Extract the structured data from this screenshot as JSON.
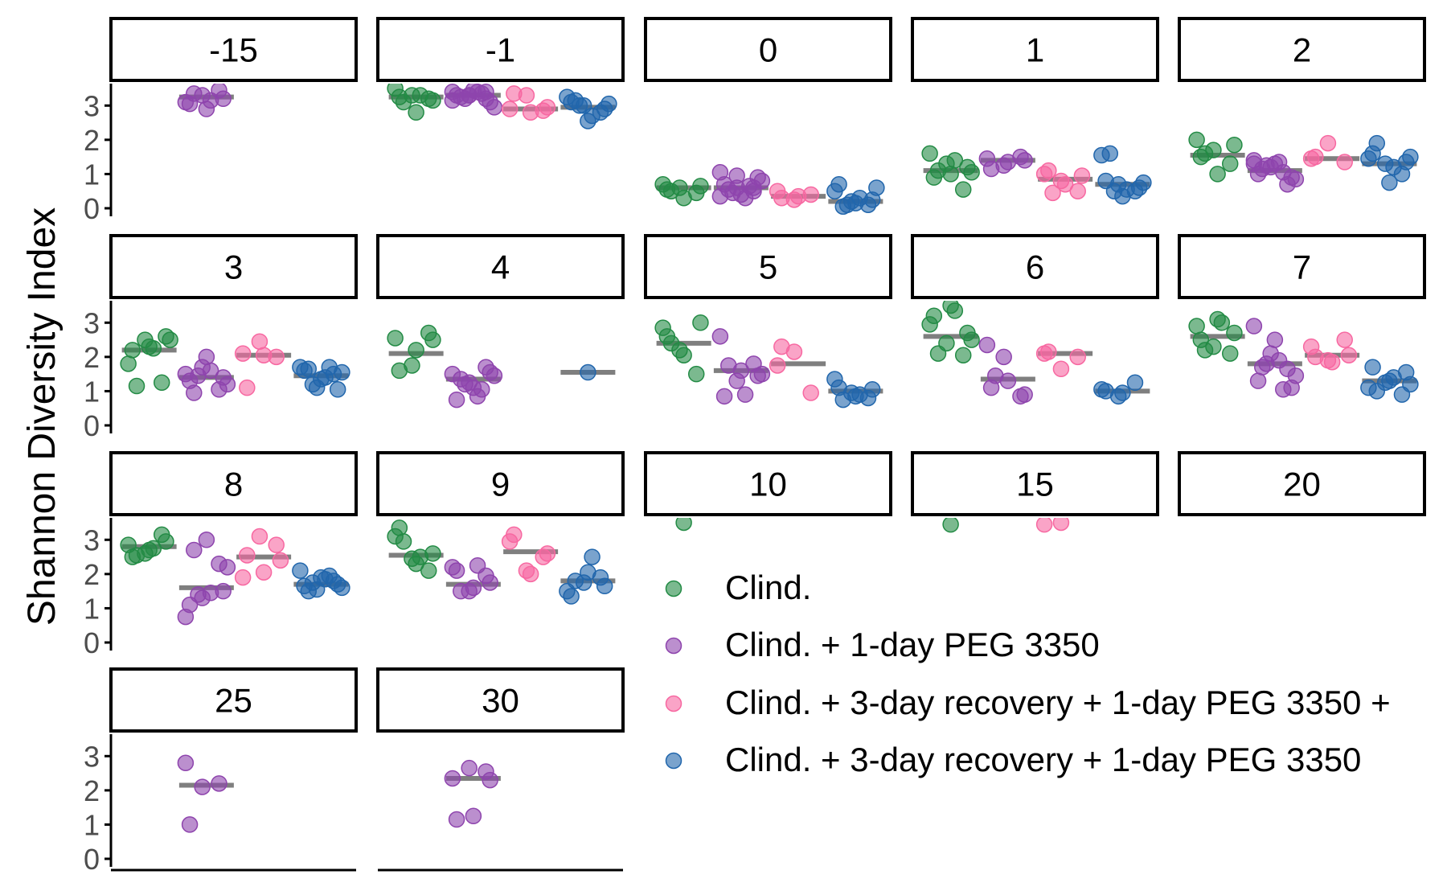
{
  "chart_data": {
    "type": "scatter",
    "ylabel": "Shannon Diversity Index",
    "xlabel": "",
    "ylim": [
      0,
      3.5
    ],
    "yticks": [
      "0",
      "1",
      "2",
      "3"
    ],
    "grid": false,
    "legend_position": "right",
    "series": [
      {
        "name": "Clind.",
        "color": "#238b45"
      },
      {
        "name": "Clind. + 1-day PEG 3350",
        "color": "#8e44ad"
      },
      {
        "name": "Clind. + 3-day recovery + 1-day PEG 3350 +",
        "color": "#f768a1"
      },
      {
        "name": "Clind. + 3-day recovery + 1-day PEG 3350",
        "color": "#2166ac"
      }
    ],
    "panels": [
      {
        "label": "-15",
        "groups": [
          null,
          {
            "median": 3.25,
            "points": [
              3.1,
              3.3,
              3.45,
              3.05,
              2.9,
              3.2,
              3.35,
              3.15
            ]
          },
          null,
          null
        ]
      },
      {
        "label": "-1",
        "groups": [
          {
            "median": 3.25,
            "points": [
              3.5,
              3.3,
              3.2,
              3.25,
              2.8,
              3.15,
              3.1,
              3.3
            ]
          },
          {
            "median": 3.3,
            "points": [
              3.4,
              3.3,
              3.2,
              3.3,
              3.45,
              3.1,
              3.25,
              3.4,
              2.95,
              3.2,
              3.35,
              3.15,
              3.3,
              3.4
            ]
          },
          {
            "median": 2.9,
            "points": [
              2.9,
              3.3,
              2.85,
              3.35,
              2.8,
              2.95
            ]
          },
          {
            "median": 2.95,
            "points": [
              3.25,
              3.0,
              2.8,
              3.1,
              2.55,
              2.9,
              3.15,
              2.7,
              3.05,
              3.0
            ]
          }
        ]
      },
      {
        "label": "0",
        "groups": [
          {
            "median": 0.6,
            "points": [
              0.7,
              0.6,
              0.45,
              0.55,
              0.3,
              0.65,
              0.5
            ]
          },
          {
            "median": 0.6,
            "points": [
              1.05,
              0.6,
              0.5,
              0.7,
              0.4,
              0.9,
              0.55,
              0.3,
              0.8,
              0.45,
              0.65,
              0.35,
              0.95,
              0.6
            ]
          },
          {
            "median": 0.35,
            "points": [
              0.5,
              0.25,
              0.4,
              0.3,
              0.35
            ]
          },
          {
            "median": 0.2,
            "points": [
              0.5,
              0.2,
              0.1,
              0.7,
              0.15,
              0.25,
              0.05,
              0.3,
              0.6,
              0.1
            ]
          }
        ]
      },
      {
        "label": "1",
        "groups": [
          {
            "median": 1.1,
            "points": [
              1.6,
              1.3,
              0.55,
              0.9,
              1.0,
              1.2,
              1.1,
              1.4,
              1.05
            ]
          },
          {
            "median": 1.4,
            "points": [
              1.45,
              1.25,
              1.5,
              1.15,
              1.35,
              1.4
            ]
          },
          {
            "median": 0.85,
            "points": [
              1.0,
              0.8,
              0.5,
              1.1,
              0.7,
              0.95,
              0.45
            ]
          },
          {
            "median": 0.7,
            "points": [
              1.55,
              0.7,
              0.5,
              0.8,
              0.35,
              0.6,
              1.6,
              0.55,
              0.75,
              0.5
            ]
          }
        ]
      },
      {
        "label": "2",
        "groups": [
          {
            "median": 1.55,
            "points": [
              2.0,
              1.7,
              1.3,
              1.5,
              1.0,
              1.85,
              1.6
            ]
          },
          {
            "median": 1.1,
            "points": [
              1.4,
              1.2,
              0.7,
              1.0,
              1.3,
              0.9,
              1.15,
              1.35,
              0.85,
              1.25,
              1.05,
              1.3
            ]
          },
          {
            "median": 1.45,
            "points": [
              1.45,
              1.9,
              1.35,
              1.5
            ]
          },
          {
            "median": 1.3,
            "points": [
              1.45,
              1.3,
              1.0,
              1.6,
              0.75,
              1.35,
              1.9,
              1.2,
              1.5
            ]
          }
        ]
      },
      {
        "label": "3",
        "groups": [
          {
            "median": 2.2,
            "points": [
              1.8,
              2.5,
              1.25,
              2.2,
              2.3,
              2.6,
              1.15,
              2.25,
              2.5
            ]
          },
          {
            "median": 1.4,
            "points": [
              1.5,
              1.7,
              1.05,
              1.3,
              2.0,
              1.4,
              0.95,
              1.6,
              1.2,
              1.45
            ]
          },
          {
            "median": 2.05,
            "points": [
              2.1,
              2.45,
              2.0,
              1.1,
              2.05
            ]
          },
          {
            "median": 1.45,
            "points": [
              1.7,
              1.1,
              1.5,
              1.6,
              1.35,
              1.05,
              1.65,
              1.4,
              1.55,
              1.2,
              1.7
            ]
          }
        ]
      },
      {
        "label": "4",
        "groups": [
          {
            "median": 2.1,
            "points": [
              2.55,
              1.75,
              2.7,
              1.6,
              2.2,
              2.5
            ]
          },
          {
            "median": 1.35,
            "points": [
              1.5,
              1.25,
              1.7,
              0.75,
              1.1,
              1.55,
              1.35,
              0.85,
              1.45,
              1.2,
              1.05
            ]
          },
          null,
          {
            "median": 1.55,
            "points": [
              1.55
            ]
          }
        ]
      },
      {
        "label": "5",
        "groups": [
          {
            "median": 2.4,
            "points": [
              2.85,
              2.2,
              1.5,
              2.6,
              2.05,
              3.0,
              2.4
            ]
          },
          {
            "median": 1.6,
            "points": [
              2.6,
              1.3,
              1.8,
              0.85,
              1.6,
              1.45,
              1.75,
              0.9,
              1.5
            ]
          },
          {
            "median": 1.8,
            "points": [
              1.75,
              2.15,
              0.95,
              2.3
            ]
          },
          {
            "median": 1.0,
            "points": [
              1.35,
              0.95,
              0.8,
              1.1,
              0.85,
              1.05,
              0.75,
              0.9
            ]
          }
        ]
      },
      {
        "label": "6",
        "groups": [
          {
            "median": 2.6,
            "points": [
              2.95,
              2.4,
              2.05,
              3.2,
              3.5,
              2.7,
              2.1,
              3.35,
              2.5
            ]
          },
          {
            "median": 1.35,
            "points": [
              2.35,
              2.0,
              0.85,
              1.1,
              1.3,
              0.9,
              1.45
            ]
          },
          {
            "median": 2.1,
            "points": [
              2.1,
              1.65,
              2.0,
              2.15
            ]
          },
          {
            "median": 1.0,
            "points": [
              1.05,
              0.85,
              1.25,
              1.0,
              0.95
            ]
          }
        ]
      },
      {
        "label": "7",
        "groups": [
          {
            "median": 2.6,
            "points": [
              2.9,
              2.3,
              2.1,
              2.5,
              3.1,
              2.7,
              2.2,
              3.0
            ]
          },
          {
            "median": 1.8,
            "points": [
              2.9,
              2.1,
              1.65,
              1.3,
              2.5,
              1.1,
              1.7,
              1.9,
              1.45,
              1.8,
              1.05
            ]
          },
          {
            "median": 2.05,
            "points": [
              2.3,
              1.9,
              2.5,
              2.0,
              1.85,
              2.05
            ]
          },
          {
            "median": 1.3,
            "points": [
              1.1,
              1.25,
              0.9,
              1.7,
              1.3,
              1.55,
              1.0,
              1.4,
              1.2
            ]
          }
        ]
      },
      {
        "label": "8",
        "groups": [
          {
            "median": 2.8,
            "points": [
              2.85,
              2.6,
              3.15,
              2.5,
              2.7,
              2.95,
              2.55,
              2.75
            ]
          },
          {
            "median": 1.6,
            "points": [
              0.75,
              1.3,
              2.3,
              1.1,
              3.0,
              1.5,
              2.7,
              1.45,
              2.2,
              1.4
            ]
          },
          {
            "median": 2.5,
            "points": [
              1.9,
              3.1,
              2.85,
              2.55,
              2.05,
              2.4
            ]
          },
          {
            "median": 1.7,
            "points": [
              2.1,
              1.55,
              1.8,
              1.65,
              1.9,
              1.7,
              1.5,
              1.85,
              1.6,
              1.75,
              1.95
            ]
          }
        ]
      },
      {
        "label": "9",
        "groups": [
          {
            "median": 2.55,
            "points": [
              3.1,
              2.45,
              2.1,
              3.35,
              2.3,
              2.6,
              2.95,
              2.5
            ]
          },
          {
            "median": 1.7,
            "points": [
              2.2,
              1.5,
              1.95,
              2.1,
              1.6,
              1.75,
              1.5,
              2.25
            ]
          },
          {
            "median": 2.65,
            "points": [
              2.95,
              2.1,
              2.5,
              3.15,
              2.0,
              2.6
            ]
          },
          {
            "median": 1.8,
            "points": [
              1.5,
              1.75,
              1.9,
              1.35,
              2.05,
              1.65,
              1.8,
              2.5
            ]
          }
        ]
      },
      {
        "label": "10",
        "groups": [
          {
            "median": null,
            "points": [
              3.5
            ]
          },
          null,
          null,
          null
        ]
      },
      {
        "label": "15",
        "groups": [
          {
            "median": null,
            "points": [
              3.45
            ]
          },
          null,
          {
            "median": null,
            "points": [
              3.45,
              3.5
            ]
          },
          null
        ]
      },
      {
        "label": "20",
        "groups": [
          null,
          null,
          null,
          null
        ]
      },
      {
        "label": "25",
        "groups": [
          null,
          {
            "median": 2.15,
            "points": [
              2.8,
              2.1,
              2.2,
              1.0
            ]
          },
          null,
          null
        ]
      },
      {
        "label": "30",
        "groups": [
          null,
          {
            "median": 2.35,
            "points": [
              2.35,
              2.65,
              2.55,
              1.15,
              1.25,
              2.3
            ]
          },
          null,
          null
        ]
      }
    ]
  }
}
